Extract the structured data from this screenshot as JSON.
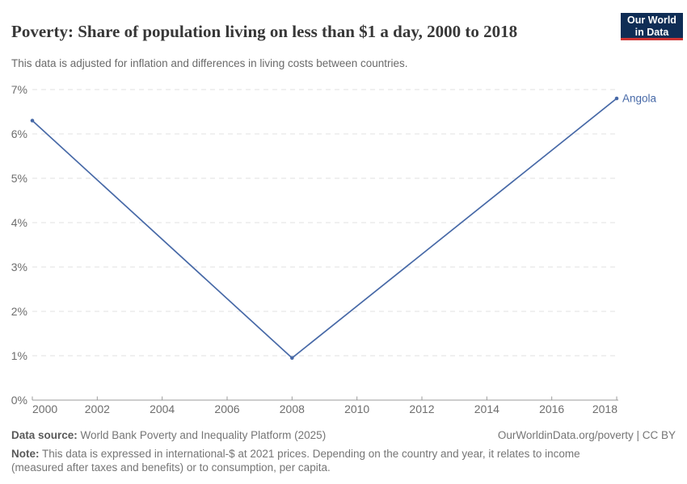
{
  "header": {
    "title": "Poverty: Share of population living on less than $1 a day, 2000 to 2018",
    "subtitle": "This data is adjusted for inflation and differences in living costs between countries.",
    "logo_line1": "Our World",
    "logo_line2": "in Data"
  },
  "chart_data": {
    "type": "line",
    "title": "Poverty: Share of population living on less than $1 a day, 2000 to 2018",
    "x": [
      2000,
      2008,
      2018
    ],
    "series": [
      {
        "name": "Angola",
        "values": [
          6.3,
          0.95,
          6.8
        ]
      }
    ],
    "end_label": "Angola",
    "xlabel": "",
    "ylabel": "",
    "xlim": [
      2000,
      2018
    ],
    "ylim": [
      0,
      7
    ],
    "xticks": [
      2000,
      2002,
      2004,
      2006,
      2008,
      2010,
      2012,
      2014,
      2016,
      2018
    ],
    "yticks": [
      0,
      1,
      2,
      3,
      4,
      5,
      6,
      7
    ],
    "ytick_suffix": "%",
    "grid": "horizontal-dashed",
    "legend_position": "end-of-line-label"
  },
  "footer": {
    "datasource_label": "Data source:",
    "datasource_value": " World Bank Poverty and Inequality Platform (2025)",
    "rights": "OurWorldinData.org/poverty | CC BY",
    "note_label": "Note:",
    "note_value": " This data is expressed in international-$ at 2021 prices. Depending on the country and year, it relates to income (measured after taxes and benefits) or to consumption, per capita."
  },
  "colors": {
    "line": "#4769a7",
    "grid": "#e2e2e2",
    "axis": "#9b9b9b",
    "tick_text": "#6e6e6e",
    "logo_bg": "#0f2d55",
    "logo_red": "#cc3333"
  }
}
